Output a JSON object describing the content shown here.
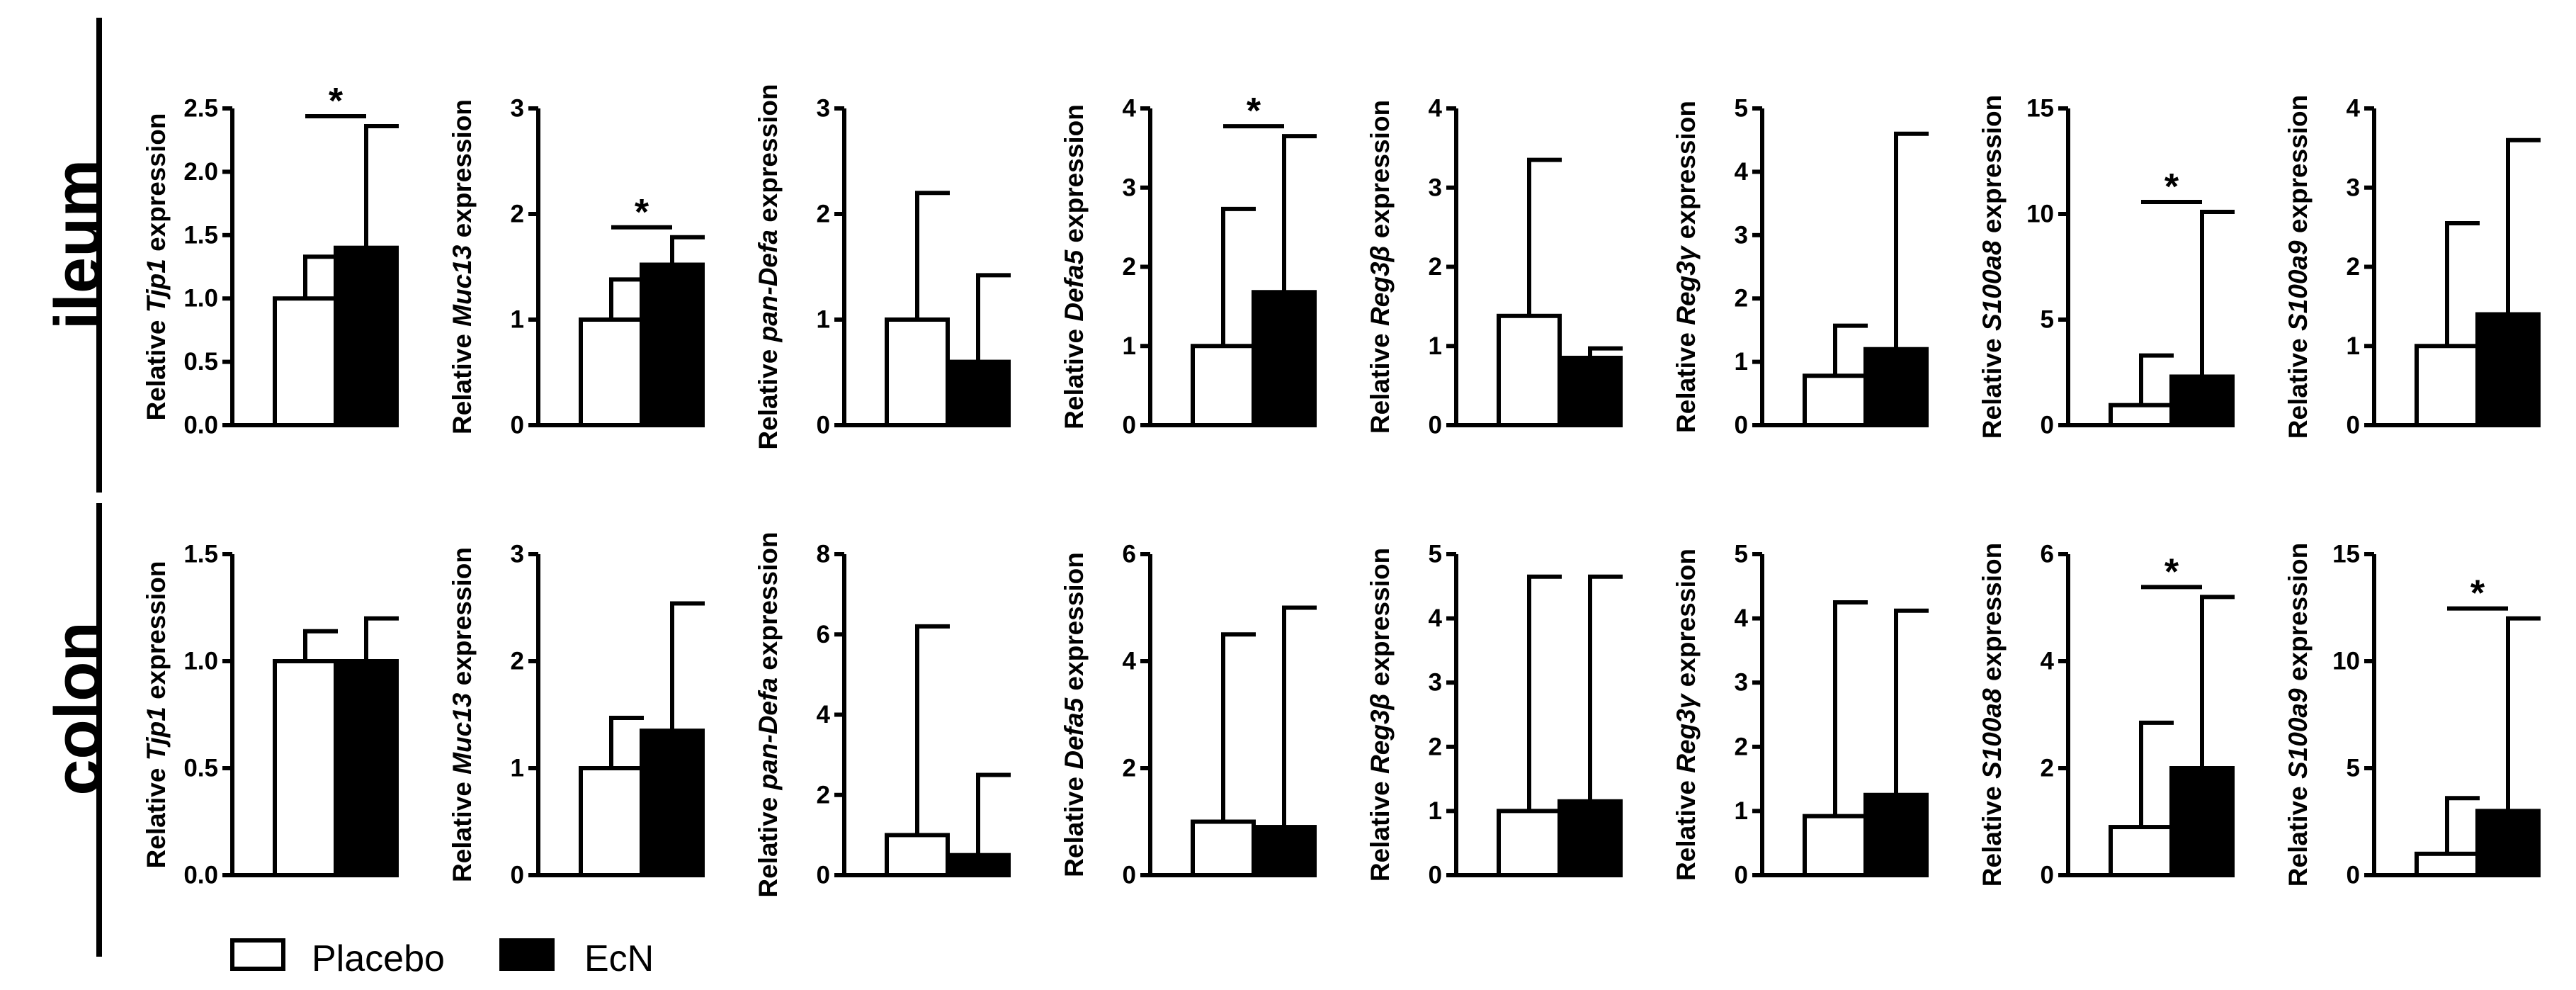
{
  "legend": [
    {
      "label": "Placebo",
      "fill": "#ffffff"
    },
    {
      "label": "EcN",
      "fill": "#000000"
    }
  ],
  "chart_data": {
    "type": "bar",
    "ylabel_prefix": "Relative",
    "ylabel_suffix": "expression",
    "series": [
      "Placebo",
      "EcN"
    ],
    "rows": [
      {
        "label": "ileum",
        "panels": [
          {
            "gene": "Tjp1",
            "ylim": [
              0,
              2.5
            ],
            "ticks": [
              "0.0",
              "0.5",
              "1.0",
              "1.5",
              "2.0",
              "2.5"
            ],
            "placebo": {
              "mean": 1.0,
              "err": 1.33
            },
            "ecn": {
              "mean": 1.4,
              "err": 2.36
            },
            "significance": "*"
          },
          {
            "gene": "Muc13",
            "ylim": [
              0,
              3
            ],
            "ticks": [
              "0",
              "1",
              "2",
              "3"
            ],
            "placebo": {
              "mean": 1.0,
              "err": 1.38
            },
            "ecn": {
              "mean": 1.52,
              "err": 1.78
            },
            "significance": "*"
          },
          {
            "gene": "pan-Defa",
            "ylim": [
              0,
              3
            ],
            "ticks": [
              "0",
              "1",
              "2",
              "3"
            ],
            "placebo": {
              "mean": 1.0,
              "err": 2.2
            },
            "ecn": {
              "mean": 0.6,
              "err": 1.42
            },
            "significance": ""
          },
          {
            "gene": "Defa5",
            "ylim": [
              0,
              4
            ],
            "ticks": [
              "0",
              "1",
              "2",
              "3",
              "4"
            ],
            "placebo": {
              "mean": 1.0,
              "err": 2.73
            },
            "ecn": {
              "mean": 1.68,
              "err": 3.65
            },
            "significance": "*"
          },
          {
            "gene": "Reg3β",
            "ylim": [
              0,
              4
            ],
            "ticks": [
              "0",
              "1",
              "2",
              "3",
              "4"
            ],
            "placebo": {
              "mean": 1.38,
              "err": 3.35
            },
            "ecn": {
              "mean": 0.85,
              "err": 0.97
            },
            "significance": ""
          },
          {
            "gene": "Reg3γ",
            "ylim": [
              0,
              5
            ],
            "ticks": [
              "0",
              "1",
              "2",
              "3",
              "4",
              "5"
            ],
            "placebo": {
              "mean": 0.78,
              "err": 1.57
            },
            "ecn": {
              "mean": 1.2,
              "err": 4.6
            },
            "significance": ""
          },
          {
            "gene": "S100a8",
            "ylim": [
              0,
              15
            ],
            "ticks": [
              "0",
              "5",
              "10",
              "15"
            ],
            "placebo": {
              "mean": 0.95,
              "err": 3.3
            },
            "ecn": {
              "mean": 2.3,
              "err": 10.1
            },
            "significance": "*"
          },
          {
            "gene": "S100a9",
            "ylim": [
              0,
              4
            ],
            "ticks": [
              "0",
              "1",
              "2",
              "3",
              "4"
            ],
            "placebo": {
              "mean": 1.0,
              "err": 2.55
            },
            "ecn": {
              "mean": 1.4,
              "err": 3.6
            },
            "significance": ""
          }
        ]
      },
      {
        "label": "colon",
        "panels": [
          {
            "gene": "Tjp1",
            "ylim": [
              0,
              1.5
            ],
            "ticks": [
              "0.0",
              "0.5",
              "1.0",
              "1.5"
            ],
            "placebo": {
              "mean": 1.0,
              "err": 1.14
            },
            "ecn": {
              "mean": 1.0,
              "err": 1.2
            },
            "significance": ""
          },
          {
            "gene": "Muc13",
            "ylim": [
              0,
              3
            ],
            "ticks": [
              "0",
              "1",
              "2",
              "3"
            ],
            "placebo": {
              "mean": 1.0,
              "err": 1.47
            },
            "ecn": {
              "mean": 1.35,
              "err": 2.54
            },
            "significance": ""
          },
          {
            "gene": "pan-Defa",
            "ylim": [
              0,
              8
            ],
            "ticks": [
              "0",
              "2",
              "4",
              "6",
              "8"
            ],
            "placebo": {
              "mean": 1.0,
              "err": 6.2
            },
            "ecn": {
              "mean": 0.5,
              "err": 2.5
            },
            "significance": ""
          },
          {
            "gene": "Defa5",
            "ylim": [
              0,
              6
            ],
            "ticks": [
              "0",
              "2",
              "4",
              "6"
            ],
            "placebo": {
              "mean": 1.0,
              "err": 4.5
            },
            "ecn": {
              "mean": 0.9,
              "err": 5.0
            },
            "significance": ""
          },
          {
            "gene": "Reg3β",
            "ylim": [
              0,
              5
            ],
            "ticks": [
              "0",
              "1",
              "2",
              "3",
              "4",
              "5"
            ],
            "placebo": {
              "mean": 1.0,
              "err": 4.65
            },
            "ecn": {
              "mean": 1.15,
              "err": 4.65
            },
            "significance": ""
          },
          {
            "gene": "Reg3γ",
            "ylim": [
              0,
              5
            ],
            "ticks": [
              "0",
              "1",
              "2",
              "3",
              "4",
              "5"
            ],
            "placebo": {
              "mean": 0.92,
              "err": 4.25
            },
            "ecn": {
              "mean": 1.25,
              "err": 4.12
            },
            "significance": ""
          },
          {
            "gene": "S100a8",
            "ylim": [
              0,
              6
            ],
            "ticks": [
              "0",
              "2",
              "4",
              "6"
            ],
            "placebo": {
              "mean": 0.9,
              "err": 2.85
            },
            "ecn": {
              "mean": 2.0,
              "err": 5.2
            },
            "significance": "*"
          },
          {
            "gene": "S100a9",
            "ylim": [
              0,
              15
            ],
            "ticks": [
              "0",
              "5",
              "10",
              "15"
            ],
            "placebo": {
              "mean": 1.0,
              "err": 3.6
            },
            "ecn": {
              "mean": 3.0,
              "err": 12.0
            },
            "significance": "*"
          }
        ]
      }
    ]
  }
}
